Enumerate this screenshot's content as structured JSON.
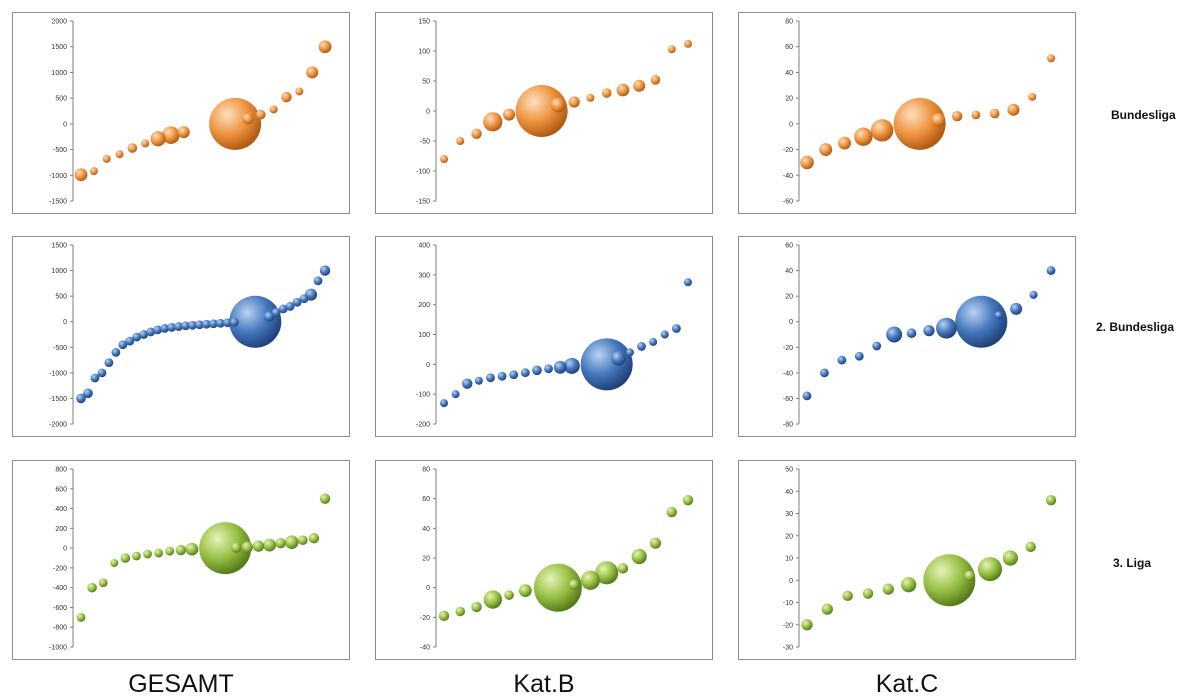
{
  "row_labels": [
    "Bundesliga",
    "2. Bundesliga",
    "3. Liga"
  ],
  "column_labels": [
    "GESAMT",
    "Kat.B",
    "Kat.C"
  ],
  "colors": {
    "orange": "#ea8f3a",
    "blue": "#3f70b6",
    "green": "#93bc3c",
    "frame": "#8c8c8c"
  },
  "chart_data": [
    {
      "type": "scatter",
      "row": "Bundesliga",
      "column": "GESAMT",
      "color": "orange",
      "yticks": [
        "2000",
        "1500",
        "1000",
        "500",
        "0",
        "-500",
        "-1000",
        "-1500"
      ],
      "ylim": [
        -1500,
        2000
      ],
      "points": [
        {
          "x": 1,
          "y": -990,
          "s": 1.6
        },
        {
          "x": 2,
          "y": -920,
          "s": 1
        },
        {
          "x": 3,
          "y": -680,
          "s": 1
        },
        {
          "x": 4,
          "y": -590,
          "s": 1
        },
        {
          "x": 5,
          "y": -470,
          "s": 1.2
        },
        {
          "x": 6,
          "y": -380,
          "s": 1
        },
        {
          "x": 7,
          "y": -290,
          "s": 1.9
        },
        {
          "x": 8,
          "y": -220,
          "s": 2.2
        },
        {
          "x": 9,
          "y": -160,
          "s": 1.5
        },
        {
          "x": 13,
          "y": 0,
          "s": 6.5
        },
        {
          "x": 14,
          "y": 100,
          "s": 1.4
        },
        {
          "x": 15,
          "y": 180,
          "s": 1.2
        },
        {
          "x": 16,
          "y": 280,
          "s": 1
        },
        {
          "x": 17,
          "y": 520,
          "s": 1.3
        },
        {
          "x": 18,
          "y": 630,
          "s": 1
        },
        {
          "x": 19,
          "y": 1000,
          "s": 1.5
        },
        {
          "x": 20,
          "y": 1500,
          "s": 1.6
        }
      ]
    },
    {
      "type": "scatter",
      "row": "Bundesliga",
      "column": "Kat.B",
      "color": "orange",
      "yticks": [
        "150",
        "100",
        "50",
        "0",
        "-50",
        "-100",
        "-150"
      ],
      "ylim": [
        -150,
        150
      ],
      "points": [
        {
          "x": 1,
          "y": -80,
          "s": 1
        },
        {
          "x": 2,
          "y": -50,
          "s": 1
        },
        {
          "x": 3,
          "y": -38,
          "s": 1.3
        },
        {
          "x": 4,
          "y": -18,
          "s": 2.4
        },
        {
          "x": 5,
          "y": -6,
          "s": 1.5
        },
        {
          "x": 7,
          "y": 0,
          "s": 6.5
        },
        {
          "x": 8,
          "y": 10,
          "s": 1.8
        },
        {
          "x": 9,
          "y": 15,
          "s": 1.4
        },
        {
          "x": 10,
          "y": 22,
          "s": 1
        },
        {
          "x": 11,
          "y": 30,
          "s": 1.2
        },
        {
          "x": 12,
          "y": 35,
          "s": 1.6
        },
        {
          "x": 13,
          "y": 42,
          "s": 1.5
        },
        {
          "x": 14,
          "y": 52,
          "s": 1.2
        },
        {
          "x": 15,
          "y": 103,
          "s": 1
        },
        {
          "x": 16,
          "y": 112,
          "s": 1
        }
      ]
    },
    {
      "type": "scatter",
      "row": "Bundesliga",
      "column": "Kat.C",
      "color": "orange",
      "yticks": [
        "80",
        "60",
        "40",
        "20",
        "0",
        "-20",
        "-40",
        "-60"
      ],
      "ylim": [
        -60,
        80
      ],
      "points": [
        {
          "x": 1,
          "y": -30,
          "s": 1.7
        },
        {
          "x": 2,
          "y": -20,
          "s": 1.6
        },
        {
          "x": 3,
          "y": -15,
          "s": 1.6
        },
        {
          "x": 4,
          "y": -10,
          "s": 2.3
        },
        {
          "x": 5,
          "y": -5,
          "s": 2.8
        },
        {
          "x": 7,
          "y": 0,
          "s": 6.5
        },
        {
          "x": 8,
          "y": 3,
          "s": 1.7
        },
        {
          "x": 9,
          "y": 6,
          "s": 1.3
        },
        {
          "x": 10,
          "y": 7,
          "s": 1.1
        },
        {
          "x": 11,
          "y": 8,
          "s": 1.2
        },
        {
          "x": 12,
          "y": 11,
          "s": 1.5
        },
        {
          "x": 13,
          "y": 21,
          "s": 1
        },
        {
          "x": 14,
          "y": 51,
          "s": 1
        }
      ]
    },
    {
      "type": "scatter",
      "row": "2. Bundesliga",
      "column": "GESAMT",
      "color": "blue",
      "yticks": [
        "1500",
        "1000",
        "500",
        "0",
        "-500",
        "-1000",
        "-1500",
        "-2000"
      ],
      "ylim": [
        -2000,
        1500
      ],
      "points": [
        {
          "x": 1,
          "y": -1500,
          "s": 1.2
        },
        {
          "x": 2,
          "y": -1400,
          "s": 1.2
        },
        {
          "x": 3,
          "y": -1100,
          "s": 1.1
        },
        {
          "x": 4,
          "y": -1000,
          "s": 1.1
        },
        {
          "x": 5,
          "y": -800,
          "s": 1.1
        },
        {
          "x": 6,
          "y": -600,
          "s": 1.1
        },
        {
          "x": 7,
          "y": -450,
          "s": 1.1
        },
        {
          "x": 8,
          "y": -380,
          "s": 1.1
        },
        {
          "x": 9,
          "y": -300,
          "s": 1.1
        },
        {
          "x": 10,
          "y": -250,
          "s": 1.1
        },
        {
          "x": 11,
          "y": -200,
          "s": 1.1
        },
        {
          "x": 12,
          "y": -160,
          "s": 1.1
        },
        {
          "x": 13,
          "y": -130,
          "s": 1.1
        },
        {
          "x": 14,
          "y": -110,
          "s": 1.1
        },
        {
          "x": 15,
          "y": -95,
          "s": 1.1
        },
        {
          "x": 16,
          "y": -80,
          "s": 1.1
        },
        {
          "x": 17,
          "y": -70,
          "s": 1.1
        },
        {
          "x": 18,
          "y": -60,
          "s": 1.1
        },
        {
          "x": 19,
          "y": -50,
          "s": 1.1
        },
        {
          "x": 20,
          "y": -40,
          "s": 1.1
        },
        {
          "x": 21,
          "y": -30,
          "s": 1.1
        },
        {
          "x": 22,
          "y": -20,
          "s": 1.1
        },
        {
          "x": 23,
          "y": -10,
          "s": 1.1
        },
        {
          "x": 26,
          "y": 0,
          "s": 6.5
        },
        {
          "x": 28,
          "y": 100,
          "s": 1.3
        },
        {
          "x": 29,
          "y": 180,
          "s": 1.1
        },
        {
          "x": 30,
          "y": 250,
          "s": 1.1
        },
        {
          "x": 31,
          "y": 300,
          "s": 1.1
        },
        {
          "x": 32,
          "y": 380,
          "s": 1.1
        },
        {
          "x": 33,
          "y": 450,
          "s": 1.1
        },
        {
          "x": 34,
          "y": 530,
          "s": 1.5
        },
        {
          "x": 35,
          "y": 800,
          "s": 1.1
        },
        {
          "x": 36,
          "y": 1000,
          "s": 1.3
        }
      ]
    },
    {
      "type": "scatter",
      "row": "2. Bundesliga",
      "column": "Kat.B",
      "color": "blue",
      "yticks": [
        "400",
        "300",
        "200",
        "100",
        "0",
        "-100",
        "-200"
      ],
      "ylim": [
        -200,
        400
      ],
      "points": [
        {
          "x": 1,
          "y": -130,
          "s": 1
        },
        {
          "x": 2,
          "y": -100,
          "s": 1
        },
        {
          "x": 3,
          "y": -65,
          "s": 1.3
        },
        {
          "x": 4,
          "y": -55,
          "s": 1
        },
        {
          "x": 5,
          "y": -45,
          "s": 1.1
        },
        {
          "x": 6,
          "y": -40,
          "s": 1.1
        },
        {
          "x": 7,
          "y": -35,
          "s": 1.1
        },
        {
          "x": 8,
          "y": -28,
          "s": 1.1
        },
        {
          "x": 9,
          "y": -20,
          "s": 1.2
        },
        {
          "x": 10,
          "y": -15,
          "s": 1.1
        },
        {
          "x": 11,
          "y": -10,
          "s": 1.6
        },
        {
          "x": 12,
          "y": -5,
          "s": 2
        },
        {
          "x": 15,
          "y": 0,
          "s": 6.5
        },
        {
          "x": 16,
          "y": 20,
          "s": 1.8
        },
        {
          "x": 17,
          "y": 40,
          "s": 1
        },
        {
          "x": 18,
          "y": 60,
          "s": 1.1
        },
        {
          "x": 19,
          "y": 75,
          "s": 1
        },
        {
          "x": 20,
          "y": 100,
          "s": 1
        },
        {
          "x": 21,
          "y": 120,
          "s": 1.1
        },
        {
          "x": 22,
          "y": 275,
          "s": 1
        }
      ]
    },
    {
      "type": "scatter",
      "row": "2. Bundesliga",
      "column": "Kat.C",
      "color": "blue",
      "yticks": [
        "60",
        "40",
        "20",
        "0",
        "-20",
        "-40",
        "-60",
        "-80"
      ],
      "ylim": [
        -80,
        60
      ],
      "points": [
        {
          "x": 1,
          "y": -58,
          "s": 1.1
        },
        {
          "x": 2,
          "y": -40,
          "s": 1.1
        },
        {
          "x": 3,
          "y": -30,
          "s": 1.1
        },
        {
          "x": 4,
          "y": -27,
          "s": 1.1
        },
        {
          "x": 5,
          "y": -19,
          "s": 1.1
        },
        {
          "x": 6,
          "y": -10,
          "s": 2
        },
        {
          "x": 7,
          "y": -9,
          "s": 1.2
        },
        {
          "x": 8,
          "y": -7,
          "s": 1.4
        },
        {
          "x": 9,
          "y": -5,
          "s": 2.6
        },
        {
          "x": 11,
          "y": 0,
          "s": 6.5
        },
        {
          "x": 12,
          "y": 5,
          "s": 1
        },
        {
          "x": 13,
          "y": 10,
          "s": 1.5
        },
        {
          "x": 14,
          "y": 21,
          "s": 1
        },
        {
          "x": 15,
          "y": 40,
          "s": 1.1
        }
      ]
    },
    {
      "type": "scatter",
      "row": "3. Liga",
      "column": "GESAMT",
      "color": "green",
      "yticks": [
        "800",
        "600",
        "400",
        "200",
        "0",
        "-200",
        "-400",
        "-600",
        "-800",
        "-1000"
      ],
      "ylim": [
        -1000,
        800
      ],
      "points": [
        {
          "x": 1,
          "y": -700,
          "s": 1.1
        },
        {
          "x": 2,
          "y": -400,
          "s": 1.2
        },
        {
          "x": 3,
          "y": -350,
          "s": 1.1
        },
        {
          "x": 4,
          "y": -150,
          "s": 1
        },
        {
          "x": 5,
          "y": -100,
          "s": 1.2
        },
        {
          "x": 6,
          "y": -80,
          "s": 1.1
        },
        {
          "x": 7,
          "y": -60,
          "s": 1.1
        },
        {
          "x": 8,
          "y": -50,
          "s": 1.1
        },
        {
          "x": 9,
          "y": -30,
          "s": 1.1
        },
        {
          "x": 10,
          "y": -20,
          "s": 1.3
        },
        {
          "x": 11,
          "y": -10,
          "s": 1.6
        },
        {
          "x": 14,
          "y": 0,
          "s": 6.5
        },
        {
          "x": 15,
          "y": 5,
          "s": 1.3
        },
        {
          "x": 16,
          "y": 10,
          "s": 1.4
        },
        {
          "x": 17,
          "y": 20,
          "s": 1.4
        },
        {
          "x": 18,
          "y": 30,
          "s": 1.6
        },
        {
          "x": 19,
          "y": 50,
          "s": 1.3
        },
        {
          "x": 20,
          "y": 60,
          "s": 1.7
        },
        {
          "x": 21,
          "y": 80,
          "s": 1.2
        },
        {
          "x": 22,
          "y": 100,
          "s": 1.3
        },
        {
          "x": 23,
          "y": 500,
          "s": 1.3
        }
      ]
    },
    {
      "type": "scatter",
      "row": "3. Liga",
      "column": "Kat.B",
      "color": "green",
      "yticks": [
        "80",
        "60",
        "40",
        "20",
        "0",
        "-20",
        "-40"
      ],
      "ylim": [
        -40,
        80
      ],
      "points": [
        {
          "x": 1,
          "y": -19,
          "s": 1.3
        },
        {
          "x": 2,
          "y": -16,
          "s": 1.2
        },
        {
          "x": 3,
          "y": -13,
          "s": 1.3
        },
        {
          "x": 4,
          "y": -8,
          "s": 2.3
        },
        {
          "x": 5,
          "y": -5,
          "s": 1.2
        },
        {
          "x": 6,
          "y": -2,
          "s": 1.6
        },
        {
          "x": 8,
          "y": 0,
          "s": 6
        },
        {
          "x": 9,
          "y": 2,
          "s": 1.3
        },
        {
          "x": 10,
          "y": 5,
          "s": 2.4
        },
        {
          "x": 11,
          "y": 10,
          "s": 2.9
        },
        {
          "x": 12,
          "y": 13,
          "s": 1.3
        },
        {
          "x": 13,
          "y": 21,
          "s": 1.9
        },
        {
          "x": 14,
          "y": 30,
          "s": 1.4
        },
        {
          "x": 15,
          "y": 51,
          "s": 1.3
        },
        {
          "x": 16,
          "y": 59,
          "s": 1.3
        }
      ]
    },
    {
      "type": "scatter",
      "row": "3. Liga",
      "column": "Kat.C",
      "color": "green",
      "yticks": [
        "50",
        "40",
        "30",
        "20",
        "10",
        "0",
        "-10",
        "-20",
        "-30"
      ],
      "ylim": [
        -30,
        50
      ],
      "points": [
        {
          "x": 1,
          "y": -20,
          "s": 1.4
        },
        {
          "x": 2,
          "y": -13,
          "s": 1.4
        },
        {
          "x": 3,
          "y": -7,
          "s": 1.3
        },
        {
          "x": 4,
          "y": -6,
          "s": 1.3
        },
        {
          "x": 5,
          "y": -4,
          "s": 1.4
        },
        {
          "x": 6,
          "y": -2,
          "s": 1.9
        },
        {
          "x": 8,
          "y": 0,
          "s": 6.5
        },
        {
          "x": 9,
          "y": 2,
          "s": 1.3
        },
        {
          "x": 10,
          "y": 5,
          "s": 3
        },
        {
          "x": 11,
          "y": 10,
          "s": 1.9
        },
        {
          "x": 12,
          "y": 15,
          "s": 1.3
        },
        {
          "x": 13,
          "y": 36,
          "s": 1.3
        }
      ]
    }
  ]
}
